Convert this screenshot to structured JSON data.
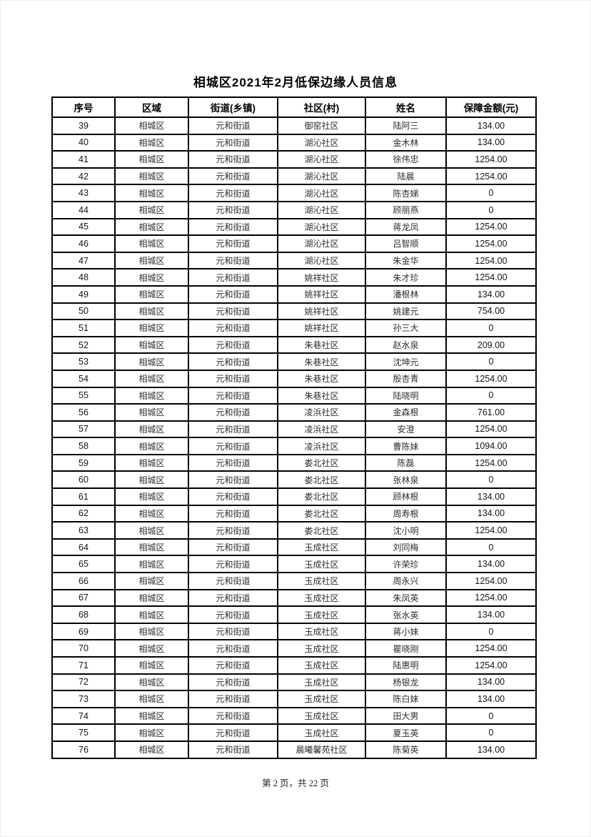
{
  "title": "相城区2021年2月低保边缘人员信息",
  "table": {
    "headers": [
      "序号",
      "区域",
      "街道(乡镇)",
      "社区(村)",
      "姓名",
      "保障金额(元)"
    ],
    "rows": [
      [
        "39",
        "相城区",
        "元和街道",
        "御窑社区",
        "陆阿三",
        "134.00"
      ],
      [
        "40",
        "相城区",
        "元和街道",
        "湖沁社区",
        "金木林",
        "134.00"
      ],
      [
        "41",
        "相城区",
        "元和街道",
        "湖沁社区",
        "徐伟忠",
        "1254.00"
      ],
      [
        "42",
        "相城区",
        "元和街道",
        "湖沁社区",
        "陆晨",
        "1254.00"
      ],
      [
        "43",
        "相城区",
        "元和街道",
        "湖沁社区",
        "陈杏娣",
        "0"
      ],
      [
        "44",
        "相城区",
        "元和街道",
        "湖沁社区",
        "顾丽燕",
        "0"
      ],
      [
        "45",
        "相城区",
        "元和街道",
        "湖沁社区",
        "蒋龙凤",
        "1254.00"
      ],
      [
        "46",
        "相城区",
        "元和街道",
        "湖沁社区",
        "吕智顺",
        "1254.00"
      ],
      [
        "47",
        "相城区",
        "元和街道",
        "湖沁社区",
        "朱金华",
        "1254.00"
      ],
      [
        "48",
        "相城区",
        "元和街道",
        "姚祥社区",
        "朱才珍",
        "1254.00"
      ],
      [
        "49",
        "相城区",
        "元和街道",
        "姚祥社区",
        "潘根林",
        "134.00"
      ],
      [
        "50",
        "相城区",
        "元和街道",
        "姚祥社区",
        "姚建元",
        "754.00"
      ],
      [
        "51",
        "相城区",
        "元和街道",
        "姚祥社区",
        "孙三大",
        "0"
      ],
      [
        "52",
        "相城区",
        "元和街道",
        "朱巷社区",
        "赵水泉",
        "209.00"
      ],
      [
        "53",
        "相城区",
        "元和街道",
        "朱巷社区",
        "沈坤元",
        "0"
      ],
      [
        "54",
        "相城区",
        "元和街道",
        "朱巷社区",
        "殷杏青",
        "1254.00"
      ],
      [
        "55",
        "相城区",
        "元和街道",
        "朱巷社区",
        "陆晓明",
        "0"
      ],
      [
        "56",
        "相城区",
        "元和街道",
        "凌浜社区",
        "金森根",
        "761.00"
      ],
      [
        "57",
        "相城区",
        "元和街道",
        "凌浜社区",
        "安澄",
        "1254.00"
      ],
      [
        "58",
        "相城区",
        "元和街道",
        "凌浜社区",
        "曹陈妹",
        "1094.00"
      ],
      [
        "59",
        "相城区",
        "元和街道",
        "娄北社区",
        "陈磊",
        "1254.00"
      ],
      [
        "60",
        "相城区",
        "元和街道",
        "娄北社区",
        "张林泉",
        "0"
      ],
      [
        "61",
        "相城区",
        "元和街道",
        "娄北社区",
        "顾林根",
        "134.00"
      ],
      [
        "62",
        "相城区",
        "元和街道",
        "娄北社区",
        "周寿根",
        "134.00"
      ],
      [
        "63",
        "相城区",
        "元和街道",
        "娄北社区",
        "沈小明",
        "1254.00"
      ],
      [
        "64",
        "相城区",
        "元和街道",
        "玉成社区",
        "刘同梅",
        "0"
      ],
      [
        "65",
        "相城区",
        "元和街道",
        "玉成社区",
        "许荣珍",
        "134.00"
      ],
      [
        "66",
        "相城区",
        "元和街道",
        "玉成社区",
        "周永兴",
        "1254.00"
      ],
      [
        "67",
        "相城区",
        "元和街道",
        "玉成社区",
        "朱凤英",
        "1254.00"
      ],
      [
        "68",
        "相城区",
        "元和街道",
        "玉成社区",
        "张水英",
        "134.00"
      ],
      [
        "69",
        "相城区",
        "元和街道",
        "玉成社区",
        "蒋小妹",
        "0"
      ],
      [
        "70",
        "相城区",
        "元和街道",
        "玉成社区",
        "瞿晓刚",
        "1254.00"
      ],
      [
        "71",
        "相城区",
        "元和街道",
        "玉成社区",
        "陆惠明",
        "1254.00"
      ],
      [
        "72",
        "相城区",
        "元和街道",
        "玉成社区",
        "杨银龙",
        "134.00"
      ],
      [
        "73",
        "相城区",
        "元和街道",
        "玉成社区",
        "陈白妹",
        "134.00"
      ],
      [
        "74",
        "相城区",
        "元和街道",
        "玉成社区",
        "田大男",
        "0"
      ],
      [
        "75",
        "相城区",
        "元和街道",
        "玉成社区",
        "夏玉英",
        "0"
      ],
      [
        "76",
        "相城区",
        "元和街道",
        "晨曦馨苑社区",
        "陈菊英",
        "134.00"
      ]
    ]
  },
  "footer": {
    "text": "第 2 页，共 22 页"
  }
}
